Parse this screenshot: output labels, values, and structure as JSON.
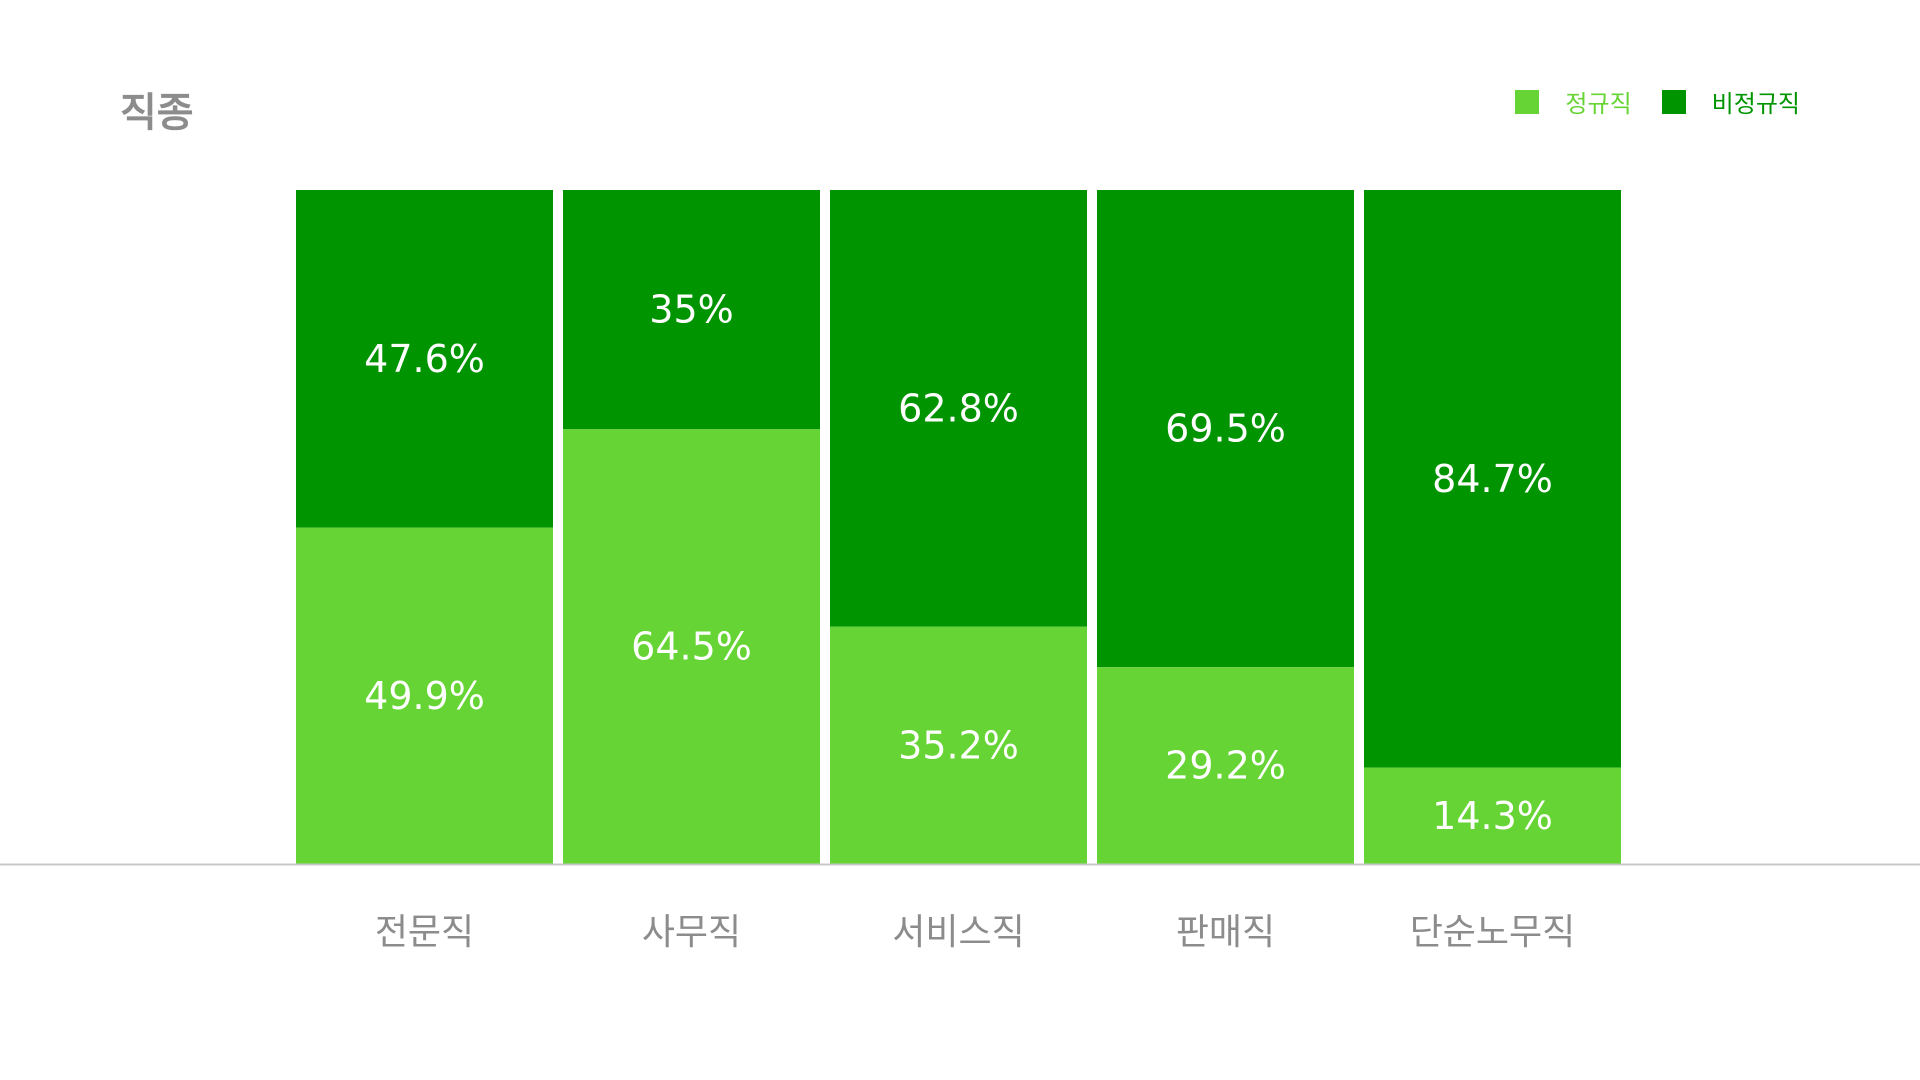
{
  "chart_data": {
    "type": "bar",
    "stacked": true,
    "title": "직종",
    "categories": [
      "전문직",
      "사무직",
      "서비스직",
      "판매직",
      "단순노무직"
    ],
    "series": [
      {
        "name": "정규직",
        "color": "#66d434",
        "values": [
          49.9,
          64.5,
          35.2,
          29.2,
          14.3
        ]
      },
      {
        "name": "비정규직",
        "color": "#009400",
        "values": [
          47.6,
          35,
          62.8,
          69.5,
          84.7
        ]
      }
    ],
    "value_labels": [
      [
        "49.9%",
        "64.5%",
        "35.2%",
        "29.2%",
        "14.3%"
      ],
      [
        "47.6%",
        "35%",
        "62.8%",
        "69.5%",
        "84.7%"
      ]
    ],
    "ylim": [
      0,
      100
    ],
    "legend_position": "top-right",
    "grid": false
  }
}
